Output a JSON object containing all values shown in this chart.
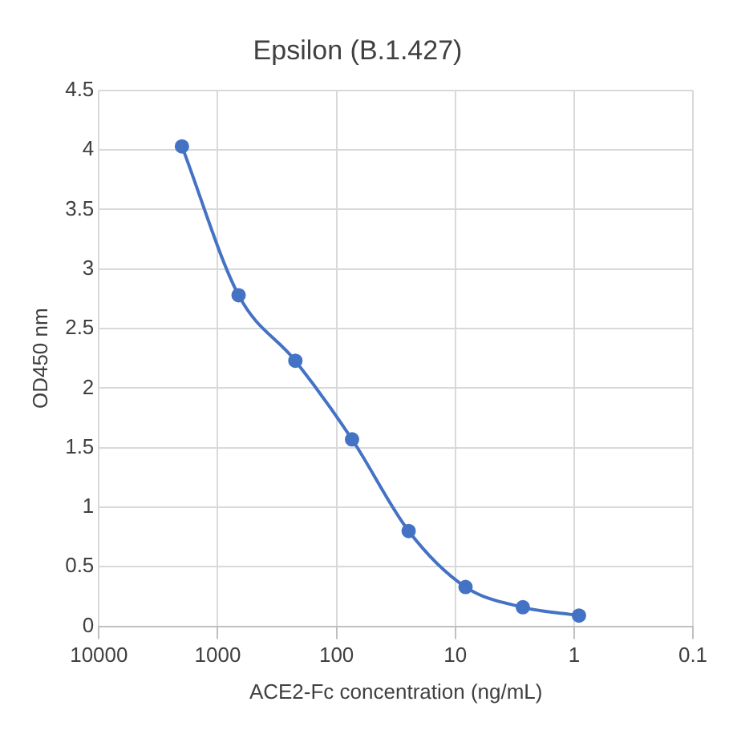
{
  "chart_data": {
    "type": "line",
    "title": "Epsilon (B.1.427)",
    "xlabel": "ACE2-Fc concentration (ng/mL)",
    "ylabel": "OD450 nm",
    "x": [
      2000,
      667,
      222,
      74,
      24.7,
      8.2,
      2.7,
      0.91
    ],
    "series": [
      {
        "color": "#4472c4",
        "values": [
          4.03,
          2.78,
          2.23,
          1.57,
          0.8,
          0.33,
          0.16,
          0.09
        ]
      }
    ],
    "log": "x",
    "xlim": [
      10000,
      0.1
    ],
    "xticks": [
      10000,
      1000,
      100,
      10,
      1,
      0.1
    ],
    "ylim": [
      0,
      4.5
    ],
    "yticks": [
      0,
      0.5,
      1,
      1.5,
      2,
      2.5,
      3,
      3.5,
      4,
      4.5
    ],
    "grid": true,
    "legend": false,
    "marker": "circle",
    "line_style": "solid"
  }
}
